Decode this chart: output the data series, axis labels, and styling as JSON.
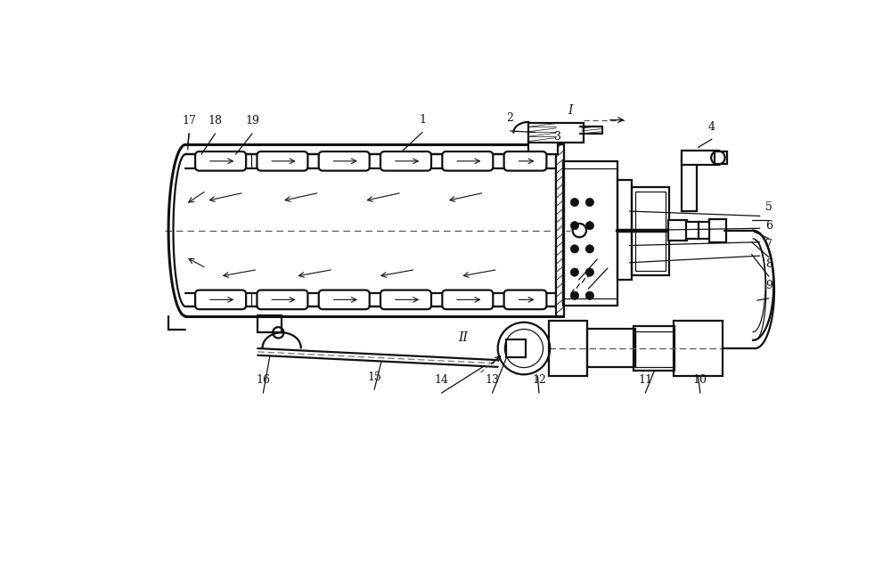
{
  "bg_color": "#ffffff",
  "line_color": "#111111",
  "lw_main": 1.6,
  "lw_thin": 0.9,
  "lw_thick": 2.2,
  "fig_width": 10.0,
  "fig_height": 6.6
}
